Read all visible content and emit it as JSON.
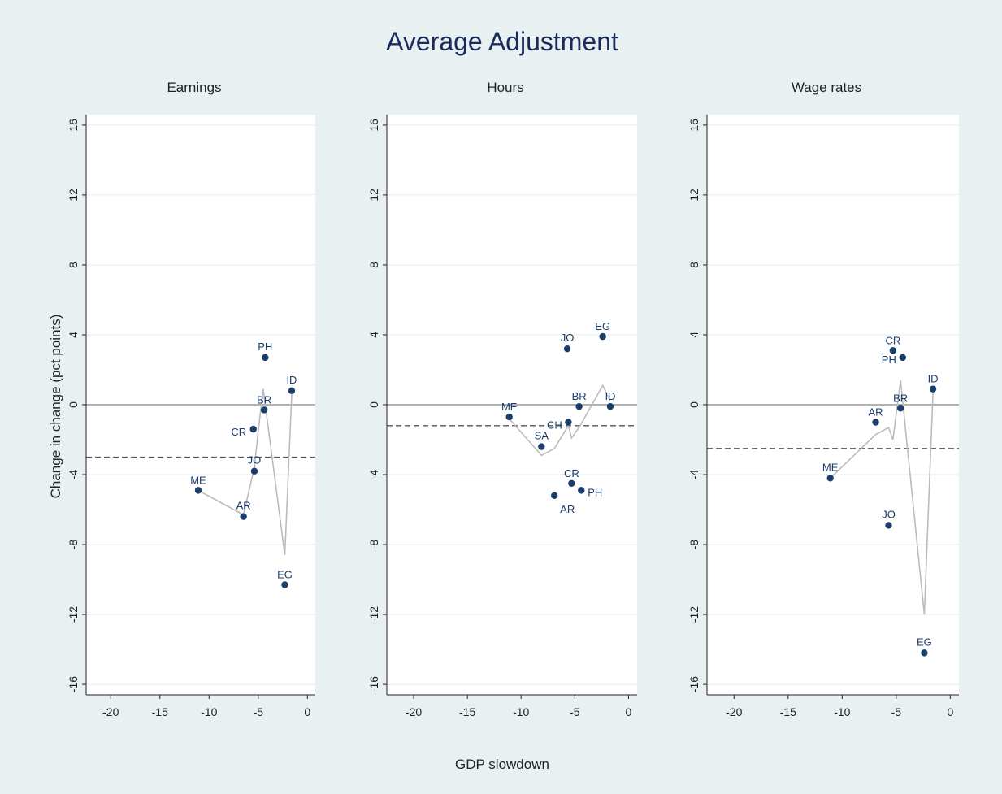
{
  "chart_data": {
    "type": "scatter",
    "title": "Average Adjustment",
    "xlabel": "GDP slowdown",
    "ylabel": "Change in change (pct points)",
    "xlim": [
      -22.5,
      0.8
    ],
    "ylim": [
      -16.6,
      16.6
    ],
    "xticks": [
      -20,
      -15,
      -10,
      -5,
      0
    ],
    "yticks": [
      -16,
      -12,
      -8,
      -4,
      0,
      4,
      8,
      12,
      16
    ],
    "grid": true,
    "colors": {
      "points": "#1a3d6b",
      "fit_line": "#bbbbbb",
      "mean_line": "#555555",
      "zero_line": "#666666"
    },
    "panels": [
      {
        "subtitle": "Earnings",
        "mean": -3.0,
        "points": [
          {
            "label": "ME",
            "x": -11.1,
            "y": -4.9
          },
          {
            "label": "AR",
            "x": -6.5,
            "y": -6.4
          },
          {
            "label": "JO",
            "x": -5.4,
            "y": -3.8
          },
          {
            "label": "CR",
            "x": -5.5,
            "y": -1.4
          },
          {
            "label": "BR",
            "x": -4.4,
            "y": -0.3
          },
          {
            "label": "PH",
            "x": -4.3,
            "y": 2.7
          },
          {
            "label": "ID",
            "x": -1.6,
            "y": 0.8
          },
          {
            "label": "EG",
            "x": -2.3,
            "y": -10.3
          }
        ],
        "fit_line": {
          "x": [
            -11.1,
            -6.5,
            -5.4,
            -5.0,
            -4.5,
            -2.3,
            -1.6
          ],
          "y": [
            -4.9,
            -6.3,
            -3.6,
            -1.5,
            0.9,
            -8.6,
            0.6
          ]
        }
      },
      {
        "subtitle": "Hours",
        "mean": -1.2,
        "points": [
          {
            "label": "ME",
            "x": -11.1,
            "y": -0.7
          },
          {
            "label": "SA",
            "x": -8.1,
            "y": -2.4
          },
          {
            "label": "AR",
            "x": -6.9,
            "y": -5.2
          },
          {
            "label": "CH",
            "x": -5.6,
            "y": -1.0
          },
          {
            "label": "JO",
            "x": -5.7,
            "y": 3.2
          },
          {
            "label": "CR",
            "x": -5.3,
            "y": -4.5
          },
          {
            "label": "PH",
            "x": -4.4,
            "y": -4.9
          },
          {
            "label": "BR",
            "x": -4.6,
            "y": -0.1
          },
          {
            "label": "EG",
            "x": -2.4,
            "y": 3.9
          },
          {
            "label": "ID",
            "x": -1.7,
            "y": -0.1
          }
        ],
        "fit_line": {
          "x": [
            -11.1,
            -8.1,
            -6.9,
            -5.6,
            -5.3,
            -4.6,
            -2.4,
            -1.7
          ],
          "y": [
            -0.8,
            -2.9,
            -2.5,
            -1.2,
            -1.9,
            -1.3,
            1.1,
            0.2
          ]
        }
      },
      {
        "subtitle": "Wage rates",
        "mean": -2.5,
        "points": [
          {
            "label": "ME",
            "x": -11.1,
            "y": -4.2
          },
          {
            "label": "AR",
            "x": -6.9,
            "y": -1.0
          },
          {
            "label": "CR",
            "x": -5.3,
            "y": 3.1
          },
          {
            "label": "PH",
            "x": -4.4,
            "y": 2.7
          },
          {
            "label": "BR",
            "x": -4.6,
            "y": -0.2
          },
          {
            "label": "ID",
            "x": -1.6,
            "y": 0.9
          },
          {
            "label": "JO",
            "x": -5.7,
            "y": -6.9
          },
          {
            "label": "EG",
            "x": -2.4,
            "y": -14.2
          }
        ],
        "fit_line": {
          "x": [
            -11.1,
            -6.9,
            -5.7,
            -5.3,
            -4.6,
            -2.4,
            -1.6
          ],
          "y": [
            -4.2,
            -1.7,
            -1.3,
            -2.0,
            1.4,
            -12.0,
            0.7
          ]
        }
      }
    ]
  }
}
